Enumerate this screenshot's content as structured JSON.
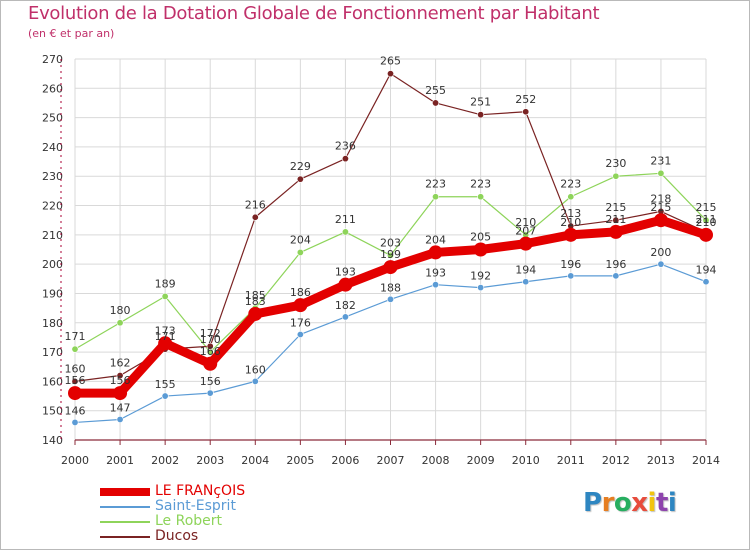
{
  "colors": {
    "title": "#c0306a",
    "grid": "#d9d9d9",
    "axis": "#aa0033",
    "tick_text": "#333333",
    "label_text": "#333333"
  },
  "chart_data": {
    "type": "line",
    "title": "Evolution de la Dotation Globale de Fonctionnement par Habitant",
    "subtitle": "(en € et par an)",
    "xlabel": "",
    "ylabel": "",
    "ylim": [
      140,
      270
    ],
    "ytick_step": 10,
    "x": [
      "2000",
      "2001",
      "2002",
      "2003",
      "2004",
      "2005",
      "2006",
      "2007",
      "2008",
      "2009",
      "2010",
      "2011",
      "2012",
      "2013",
      "2014"
    ],
    "series": [
      {
        "name": "LE FRANçOIS",
        "color": "#e30000",
        "width": 9,
        "marker": 7,
        "values": [
          156,
          156,
          173,
          166,
          183,
          186,
          193,
          199,
          204,
          205,
          207,
          210,
          211,
          215,
          210
        ]
      },
      {
        "name": "Saint-Esprit",
        "color": "#5b9bd5",
        "width": 1.2,
        "marker": 3.2,
        "values": [
          146,
          147,
          155,
          156,
          160,
          176,
          182,
          188,
          193,
          192,
          194,
          196,
          196,
          200,
          194
        ]
      },
      {
        "name": "Le Robert",
        "color": "#8ed45a",
        "width": 1.2,
        "marker": 3.2,
        "values": [
          171,
          180,
          189,
          170,
          185,
          204,
          211,
          203,
          223,
          223,
          210,
          223,
          230,
          231,
          215
        ]
      },
      {
        "name": "Ducos",
        "color": "#7a2323",
        "width": 1.2,
        "marker": 3.2,
        "values": [
          160,
          162,
          171,
          172,
          216,
          229,
          236,
          265,
          255,
          251,
          252,
          213,
          215,
          218,
          211
        ]
      }
    ]
  },
  "legend": [
    {
      "label": "LE FRANçOIS",
      "color": "#e30000"
    },
    {
      "label": "Saint-Esprit",
      "color": "#5b9bd5"
    },
    {
      "label": "Le Robert",
      "color": "#8ed45a"
    },
    {
      "label": "Ducos",
      "color": "#7a2323"
    }
  ],
  "logo": {
    "letters": [
      "P",
      "r",
      "o",
      "x",
      "i",
      "t",
      "i"
    ],
    "colors": [
      "#2e86c1",
      "#e67e22",
      "#27ae60",
      "#e74c3c",
      "#f1c40f",
      "#8e44ad",
      "#2e86c1"
    ]
  }
}
